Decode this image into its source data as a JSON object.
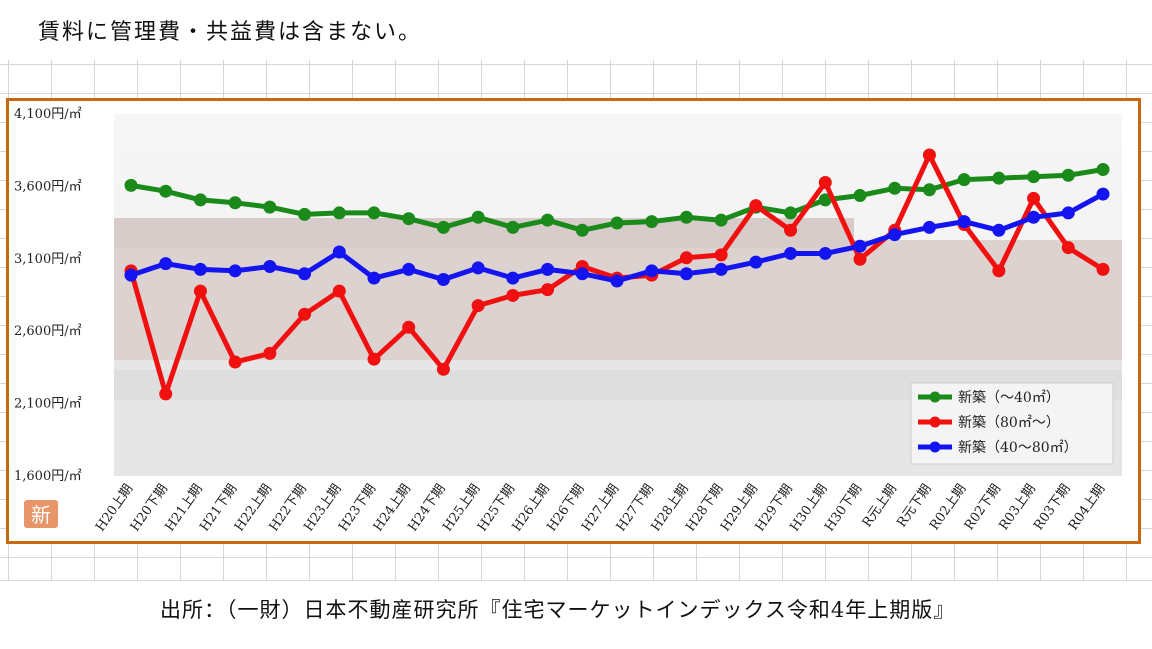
{
  "header": {
    "note": "賃料に管理費・共益費は含まない。"
  },
  "footer": {
    "source": "出所：（一財）日本不動産研究所『住宅マーケットインデックス令和4年上期版』"
  },
  "badge": {
    "label": "新"
  },
  "colors": {
    "frame": "#c8690f",
    "green": "#1a8a1a",
    "red": "#f01010",
    "blue": "#1414f0",
    "badge": "#e8956a"
  },
  "chart_data": {
    "type": "line",
    "title": "",
    "xlabel": "",
    "ylabel": "",
    "ylim": [
      1600,
      4100
    ],
    "yticks": [
      "4,100円/㎡",
      "3,600円/㎡",
      "3,100円/㎡",
      "2,600円/㎡",
      "2,100円/㎡",
      "1,600円/㎡"
    ],
    "ytick_values": [
      4100,
      3600,
      3100,
      2600,
      2100,
      1600
    ],
    "categories": [
      "H20上期",
      "H20下期",
      "H21上期",
      "H21下期",
      "H22上期",
      "H22下期",
      "H23上期",
      "H23下期",
      "H24上期",
      "H24下期",
      "H25上期",
      "H25下期",
      "H26上期",
      "H26下期",
      "H27上期",
      "H27下期",
      "H28上期",
      "H28下期",
      "H29上期",
      "H29下期",
      "H30上期",
      "H30下期",
      "R元上期",
      "R元下期",
      "R02上期",
      "R02下期",
      "R03上期",
      "R03下期",
      "R04上期"
    ],
    "series": [
      {
        "name": "新築（～40㎡）",
        "color": "#1a8a1a",
        "values": [
          3600,
          3560,
          3500,
          3480,
          3450,
          3400,
          3410,
          3410,
          3370,
          3310,
          3380,
          3310,
          3360,
          3290,
          3340,
          3350,
          3380,
          3360,
          3450,
          3410,
          3500,
          3530,
          3580,
          3570,
          3640,
          3650,
          3660,
          3670,
          3710
        ]
      },
      {
        "name": "新築（80㎡～）",
        "color": "#f01010",
        "values": [
          3010,
          2160,
          2870,
          2380,
          2440,
          2710,
          2870,
          2400,
          2620,
          2330,
          2770,
          2840,
          2880,
          3040,
          2960,
          2980,
          3100,
          3120,
          3460,
          3290,
          3620,
          3090,
          3290,
          3810,
          3330,
          3010,
          3510,
          3170,
          3020
        ]
      },
      {
        "name": "新築（40～80㎡）",
        "color": "#1414f0",
        "values": [
          2980,
          3060,
          3020,
          3010,
          3040,
          2990,
          3140,
          2960,
          3020,
          2950,
          3030,
          2960,
          3020,
          2990,
          2940,
          3010,
          2990,
          3020,
          3070,
          3130,
          3130,
          3180,
          3260,
          3310,
          3350,
          3290,
          3380,
          3410,
          3540
        ]
      }
    ],
    "legend_position": "bottom-right",
    "grid": false
  }
}
